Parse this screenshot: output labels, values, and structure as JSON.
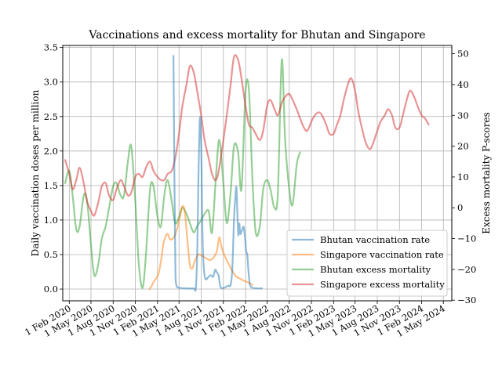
{
  "chart_data": {
    "type": "line",
    "title": "Vaccinations and excess mortality for Bhutan and Singapore",
    "ylabel_left": "Daily vaccination doses per million",
    "ylabel_right": "Excess mortality P-scores",
    "xlim": [
      "2020-01-05",
      "2024-06-05"
    ],
    "ylim_left": [
      -0.17,
      3.53
    ],
    "ylim_right": [
      -30.2,
      52.7
    ],
    "yticks_left": [
      0.0,
      0.5,
      1.0,
      1.5,
      2.0,
      2.5,
      3.0,
      3.5
    ],
    "ytick_labels_left": [
      "0.0",
      "0.5",
      "1.0",
      "1.5",
      "2.0",
      "2.5",
      "3.0",
      "3.5"
    ],
    "yticks_right": [
      -30,
      -20,
      -10,
      0,
      10,
      20,
      30,
      40,
      50
    ],
    "ytick_labels_right": [
      "−30",
      "−20",
      "−10",
      "0",
      "10",
      "20",
      "30",
      "40",
      "50"
    ],
    "xticks": [
      "2020-02-01",
      "2020-05-01",
      "2020-08-01",
      "2020-11-01",
      "2021-02-01",
      "2021-05-01",
      "2021-08-01",
      "2021-11-01",
      "2022-02-01",
      "2022-05-01",
      "2022-08-01",
      "2022-11-01",
      "2023-02-01",
      "2023-05-01",
      "2023-08-01",
      "2023-11-01",
      "2024-02-01",
      "2024-05-01"
    ],
    "xtick_labels": [
      "1 Feb 2020",
      "1 May 2020",
      "1 Aug 2020",
      "1 Nov 2020",
      "1 Feb 2021",
      "1 May 2021",
      "1 Aug 2021",
      "1 Nov 2021",
      "1 Feb 2022",
      "1 May 2022",
      "1 Aug 2022",
      "1 Nov 2022",
      "1 Feb 2023",
      "1 May 2023",
      "1 Aug 2023",
      "1 Nov 2023",
      "1 Feb 2024",
      "1 May 2024"
    ],
    "grid": true,
    "legend_position": "lower-right",
    "series": [
      {
        "name": "Bhutan vaccination rate",
        "axis": "left",
        "color": "#1f77b4",
        "points": [
          [
            "2021-04-08",
            3.38
          ],
          [
            "2021-04-12",
            1.6
          ],
          [
            "2021-04-16",
            0.3
          ],
          [
            "2021-04-20",
            0.06
          ],
          [
            "2021-05-01",
            0.02
          ],
          [
            "2021-06-01",
            0.01
          ],
          [
            "2021-07-01",
            0.01
          ],
          [
            "2021-07-10",
            0.02
          ],
          [
            "2021-07-16",
            0.6
          ],
          [
            "2021-07-20",
            1.5
          ],
          [
            "2021-07-25",
            2.35
          ],
          [
            "2021-07-29",
            2.45
          ],
          [
            "2021-08-02",
            1.9
          ],
          [
            "2021-08-06",
            0.9
          ],
          [
            "2021-08-10",
            0.4
          ],
          [
            "2021-08-18",
            0.15
          ],
          [
            "2021-09-01",
            0.18
          ],
          [
            "2021-09-10",
            0.2
          ],
          [
            "2021-09-20",
            0.18
          ],
          [
            "2021-09-28",
            0.28
          ],
          [
            "2021-10-05",
            0.24
          ],
          [
            "2021-10-12",
            0.2
          ],
          [
            "2021-10-20",
            0.03
          ],
          [
            "2021-11-05",
            0.02
          ],
          [
            "2021-11-20",
            0.05
          ],
          [
            "2021-12-01",
            0.06
          ],
          [
            "2021-12-08",
            0.3
          ],
          [
            "2021-12-15",
            1.0
          ],
          [
            "2021-12-20",
            1.3
          ],
          [
            "2021-12-25",
            1.48
          ],
          [
            "2021-12-29",
            1.1
          ],
          [
            "2022-01-02",
            0.78
          ],
          [
            "2022-01-06",
            0.95
          ],
          [
            "2022-01-10",
            0.8
          ],
          [
            "2022-01-17",
            0.85
          ],
          [
            "2022-01-24",
            0.9
          ],
          [
            "2022-01-31",
            0.7
          ],
          [
            "2022-02-03",
            0.55
          ],
          [
            "2022-02-08",
            0.5
          ],
          [
            "2022-02-12",
            0.3
          ],
          [
            "2022-02-16",
            0.15
          ],
          [
            "2022-02-20",
            0.05
          ],
          [
            "2022-03-01",
            0.02
          ],
          [
            "2022-03-20",
            0.01
          ],
          [
            "2022-04-10",
            0.01
          ]
        ]
      },
      {
        "name": "Singapore vaccination rate",
        "axis": "left",
        "color": "#ff7f0e",
        "points": [
          [
            "2020-12-30",
            0.0
          ],
          [
            "2021-01-08",
            0.05
          ],
          [
            "2021-01-15",
            0.1
          ],
          [
            "2021-01-25",
            0.15
          ],
          [
            "2021-02-05",
            0.22
          ],
          [
            "2021-02-15",
            0.4
          ],
          [
            "2021-02-25",
            0.65
          ],
          [
            "2021-03-05",
            0.75
          ],
          [
            "2021-03-15",
            0.8
          ],
          [
            "2021-03-25",
            0.72
          ],
          [
            "2021-04-10",
            0.75
          ],
          [
            "2021-04-25",
            0.9
          ],
          [
            "2021-05-05",
            1.05
          ],
          [
            "2021-05-15",
            1.2
          ],
          [
            "2021-05-25",
            1.12
          ],
          [
            "2021-06-05",
            0.7
          ],
          [
            "2021-06-15",
            0.35
          ],
          [
            "2021-06-25",
            0.3
          ],
          [
            "2021-07-05",
            0.4
          ],
          [
            "2021-07-20",
            0.5
          ],
          [
            "2021-08-05",
            0.48
          ],
          [
            "2021-08-20",
            0.45
          ],
          [
            "2021-09-05",
            0.42
          ],
          [
            "2021-09-20",
            0.45
          ],
          [
            "2021-10-05",
            0.55
          ],
          [
            "2021-10-15",
            0.75
          ],
          [
            "2021-10-25",
            0.6
          ],
          [
            "2021-11-10",
            0.45
          ],
          [
            "2021-11-25",
            0.35
          ],
          [
            "2021-12-10",
            0.25
          ],
          [
            "2021-12-25",
            0.18
          ],
          [
            "2022-01-10",
            0.15
          ],
          [
            "2022-01-25",
            0.12
          ],
          [
            "2022-02-10",
            0.1
          ],
          [
            "2022-03-01",
            0.06
          ]
        ]
      },
      {
        "name": "Bhutan excess mortality",
        "axis": "right",
        "color": "#2ca02c",
        "points": [
          [
            "2020-01-15",
            8
          ],
          [
            "2020-02-01",
            12
          ],
          [
            "2020-02-15",
            4
          ],
          [
            "2020-03-01",
            -7
          ],
          [
            "2020-03-15",
            -6
          ],
          [
            "2020-04-01",
            4
          ],
          [
            "2020-04-15",
            2
          ],
          [
            "2020-05-01",
            -12
          ],
          [
            "2020-05-15",
            -22
          ],
          [
            "2020-06-01",
            -18
          ],
          [
            "2020-06-15",
            -10
          ],
          [
            "2020-07-01",
            -6
          ],
          [
            "2020-07-15",
            0
          ],
          [
            "2020-08-01",
            7
          ],
          [
            "2020-08-15",
            8
          ],
          [
            "2020-09-01",
            4
          ],
          [
            "2020-09-15",
            4
          ],
          [
            "2020-10-01",
            15
          ],
          [
            "2020-10-15",
            20
          ],
          [
            "2020-11-01",
            2
          ],
          [
            "2020-11-15",
            -18
          ],
          [
            "2020-12-01",
            -26
          ],
          [
            "2020-12-15",
            -15
          ],
          [
            "2021-01-01",
            6
          ],
          [
            "2021-01-15",
            7
          ],
          [
            "2021-02-01",
            -3
          ],
          [
            "2021-02-15",
            -6
          ],
          [
            "2021-03-01",
            4
          ],
          [
            "2021-03-15",
            9
          ],
          [
            "2021-04-01",
            2
          ],
          [
            "2021-04-15",
            -5
          ],
          [
            "2021-05-01",
            -3
          ],
          [
            "2021-05-15",
            0
          ],
          [
            "2021-06-01",
            -2
          ],
          [
            "2021-06-15",
            -5
          ],
          [
            "2021-07-01",
            -8
          ],
          [
            "2021-07-15",
            -6
          ],
          [
            "2021-08-01",
            -4
          ],
          [
            "2021-08-15",
            -2
          ],
          [
            "2021-09-01",
            -1
          ],
          [
            "2021-09-15",
            -8
          ],
          [
            "2021-10-01",
            10
          ],
          [
            "2021-10-15",
            22
          ],
          [
            "2021-11-01",
            8
          ],
          [
            "2021-11-15",
            -5
          ],
          [
            "2021-12-01",
            5
          ],
          [
            "2021-12-15",
            20
          ],
          [
            "2022-01-01",
            18
          ],
          [
            "2022-01-15",
            6
          ],
          [
            "2022-02-01",
            38
          ],
          [
            "2022-02-15",
            38
          ],
          [
            "2022-03-01",
            10
          ],
          [
            "2022-03-15",
            -8
          ],
          [
            "2022-04-01",
            -6
          ],
          [
            "2022-04-15",
            6
          ],
          [
            "2022-05-01",
            9
          ],
          [
            "2022-05-15",
            6
          ],
          [
            "2022-06-01",
            0
          ],
          [
            "2022-06-15",
            5
          ],
          [
            "2022-07-01",
            48
          ],
          [
            "2022-07-15",
            22
          ],
          [
            "2022-08-01",
            6
          ],
          [
            "2022-08-15",
            1
          ],
          [
            "2022-09-01",
            14
          ],
          [
            "2022-09-15",
            18
          ]
        ]
      },
      {
        "name": "Singapore excess mortality",
        "axis": "right",
        "color": "#d62728",
        "points": [
          [
            "2020-01-15",
            15.5
          ],
          [
            "2020-02-01",
            11
          ],
          [
            "2020-02-15",
            6
          ],
          [
            "2020-03-01",
            9
          ],
          [
            "2020-03-15",
            13
          ],
          [
            "2020-04-01",
            8
          ],
          [
            "2020-04-15",
            2
          ],
          [
            "2020-05-01",
            -1
          ],
          [
            "2020-05-15",
            -2.5
          ],
          [
            "2020-06-01",
            2
          ],
          [
            "2020-06-15",
            7
          ],
          [
            "2020-07-01",
            8
          ],
          [
            "2020-07-15",
            4
          ],
          [
            "2020-08-01",
            2.5
          ],
          [
            "2020-08-15",
            6
          ],
          [
            "2020-09-01",
            9
          ],
          [
            "2020-09-15",
            7
          ],
          [
            "2020-10-01",
            4
          ],
          [
            "2020-10-15",
            5
          ],
          [
            "2020-11-01",
            10
          ],
          [
            "2020-11-15",
            11
          ],
          [
            "2020-12-01",
            10
          ],
          [
            "2020-12-15",
            13
          ],
          [
            "2021-01-01",
            15
          ],
          [
            "2021-01-15",
            12
          ],
          [
            "2021-02-01",
            10
          ],
          [
            "2021-02-15",
            9
          ],
          [
            "2021-03-01",
            9
          ],
          [
            "2021-03-15",
            11
          ],
          [
            "2021-04-01",
            12
          ],
          [
            "2021-04-15",
            16
          ],
          [
            "2021-05-01",
            24
          ],
          [
            "2021-05-15",
            33
          ],
          [
            "2021-06-01",
            40
          ],
          [
            "2021-06-15",
            46
          ],
          [
            "2021-07-01",
            44
          ],
          [
            "2021-07-15",
            38
          ],
          [
            "2021-08-01",
            30
          ],
          [
            "2021-08-15",
            22
          ],
          [
            "2021-09-01",
            16
          ],
          [
            "2021-09-15",
            11
          ],
          [
            "2021-10-01",
            9
          ],
          [
            "2021-10-15",
            13
          ],
          [
            "2021-11-01",
            22
          ],
          [
            "2021-11-15",
            30
          ],
          [
            "2021-12-01",
            40
          ],
          [
            "2021-12-15",
            49
          ],
          [
            "2022-01-01",
            48
          ],
          [
            "2022-01-15",
            42
          ],
          [
            "2022-02-01",
            33
          ],
          [
            "2022-02-15",
            27
          ],
          [
            "2022-03-01",
            26
          ],
          [
            "2022-03-15",
            24
          ],
          [
            "2022-04-01",
            22
          ],
          [
            "2022-04-15",
            25
          ],
          [
            "2022-05-01",
            33
          ],
          [
            "2022-05-15",
            35
          ],
          [
            "2022-06-01",
            32
          ],
          [
            "2022-06-15",
            30
          ],
          [
            "2022-07-01",
            34
          ],
          [
            "2022-07-15",
            36
          ],
          [
            "2022-08-01",
            37
          ],
          [
            "2022-08-15",
            35
          ],
          [
            "2022-09-01",
            32
          ],
          [
            "2022-09-15",
            29
          ],
          [
            "2022-10-01",
            26
          ],
          [
            "2022-10-15",
            25
          ],
          [
            "2022-11-01",
            28
          ],
          [
            "2022-11-15",
            30
          ],
          [
            "2022-12-01",
            31
          ],
          [
            "2022-12-15",
            30
          ],
          [
            "2023-01-01",
            27
          ],
          [
            "2023-01-15",
            24
          ],
          [
            "2023-02-01",
            24
          ],
          [
            "2023-02-15",
            27
          ],
          [
            "2023-03-01",
            30
          ],
          [
            "2023-03-15",
            35
          ],
          [
            "2023-04-01",
            40
          ],
          [
            "2023-04-15",
            42
          ],
          [
            "2023-05-01",
            38
          ],
          [
            "2023-05-15",
            31
          ],
          [
            "2023-06-01",
            25
          ],
          [
            "2023-06-15",
            21
          ],
          [
            "2023-07-01",
            19
          ],
          [
            "2023-07-15",
            21
          ],
          [
            "2023-08-01",
            25
          ],
          [
            "2023-08-15",
            28
          ],
          [
            "2023-09-01",
            30
          ],
          [
            "2023-09-15",
            32
          ],
          [
            "2023-10-01",
            30
          ],
          [
            "2023-10-15",
            26
          ],
          [
            "2023-11-01",
            26
          ],
          [
            "2023-11-15",
            30
          ],
          [
            "2023-12-01",
            35
          ],
          [
            "2023-12-15",
            38
          ],
          [
            "2024-01-01",
            36
          ],
          [
            "2024-01-15",
            33
          ],
          [
            "2024-02-01",
            30
          ],
          [
            "2024-02-15",
            29
          ],
          [
            "2024-03-01",
            27
          ]
        ]
      }
    ]
  }
}
